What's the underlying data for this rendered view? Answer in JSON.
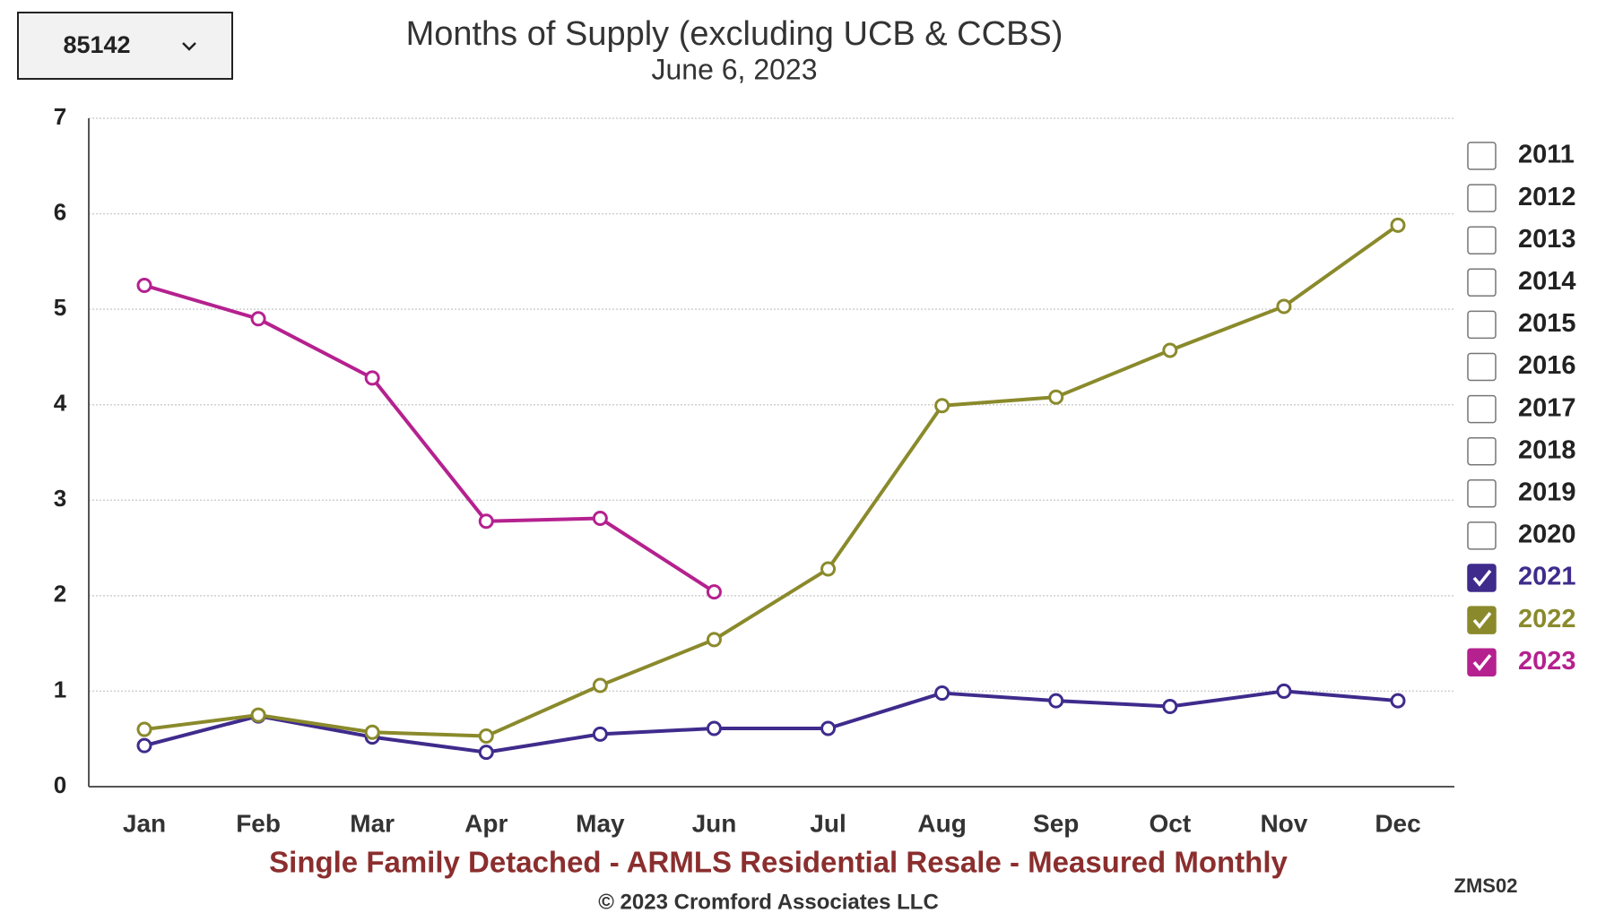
{
  "dropdown": {
    "value": "85142"
  },
  "chart_data": {
    "type": "line",
    "title": "Months of Supply (excluding UCB & CCBS)",
    "subtitle": "June 6, 2023",
    "x_label": "Single Family Detached - ARMLS Residential Resale - Measured Monthly",
    "categories": [
      "Jan",
      "Feb",
      "Mar",
      "Apr",
      "May",
      "Jun",
      "Jul",
      "Aug",
      "Sep",
      "Oct",
      "Nov",
      "Dec"
    ],
    "ylim": [
      0,
      7
    ],
    "yticks": [
      0,
      1,
      2,
      3,
      4,
      5,
      6,
      7
    ],
    "grid": true,
    "legend_position": "right",
    "legend_unchecked": [
      "2011",
      "2012",
      "2013",
      "2014",
      "2015",
      "2016",
      "2017",
      "2018",
      "2019",
      "2020"
    ],
    "series": [
      {
        "name": "2021",
        "color": "#3f2b8c",
        "values": [
          0.43,
          0.74,
          0.52,
          0.36,
          0.55,
          0.61,
          0.61,
          0.98,
          0.9,
          0.84,
          1.0,
          0.9
        ]
      },
      {
        "name": "2022",
        "color": "#8a8a2c",
        "values": [
          0.6,
          0.75,
          0.57,
          0.53,
          1.06,
          1.54,
          2.28,
          3.99,
          4.08,
          4.57,
          5.03,
          5.88
        ]
      },
      {
        "name": "2023",
        "color": "#b5218f",
        "values": [
          5.25,
          4.9,
          4.28,
          2.78,
          2.81,
          2.04,
          null,
          null,
          null,
          null,
          null,
          null
        ]
      }
    ]
  },
  "footer": {
    "copyright": "© 2023 Cromford Associates LLC",
    "code": "ZMS02"
  }
}
